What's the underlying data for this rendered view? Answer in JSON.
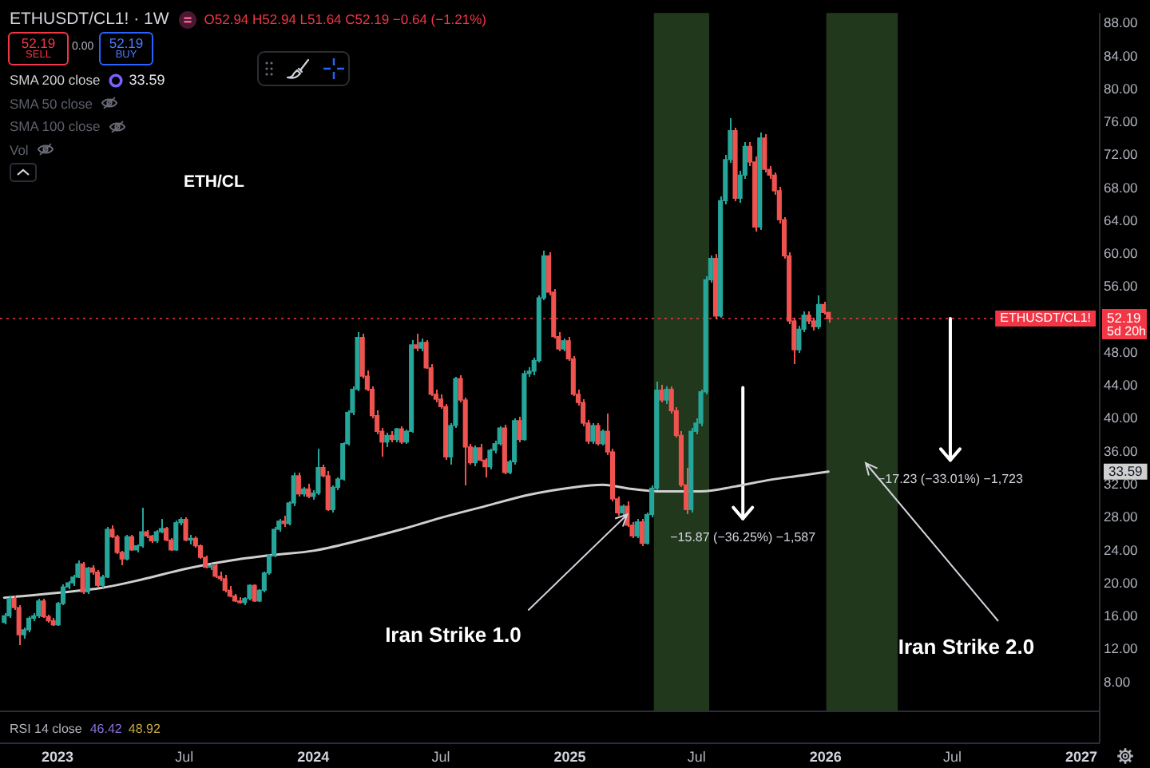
{
  "chart_data": {
    "type": "candlestick",
    "title": "ETHUSDT/CL1! · 1W",
    "subtitle": "O52.94 H52.94 L51.64 C52.19 −0.64 (−1.21%)",
    "x": [
      "2022-10-17",
      "2022-10-24",
      "2022-10-31",
      "2022-11-07",
      "2022-11-14",
      "2022-11-21",
      "2022-11-28",
      "2022-12-05",
      "2022-12-12",
      "2022-12-19",
      "2022-12-26",
      "2023-01-02",
      "2023-01-09",
      "2023-01-16",
      "2023-01-23",
      "2023-01-30",
      "2023-02-06",
      "2023-02-13",
      "2023-02-20",
      "2023-02-27",
      "2023-03-06",
      "2023-03-13",
      "2023-03-20",
      "2023-03-27",
      "2023-04-03",
      "2023-04-10",
      "2023-04-17",
      "2023-04-24",
      "2023-05-01",
      "2023-05-08",
      "2023-05-15",
      "2023-05-22",
      "2023-05-29",
      "2023-06-05",
      "2023-06-12",
      "2023-06-19",
      "2023-06-26",
      "2023-07-03",
      "2023-07-10",
      "2023-07-17",
      "2023-07-24",
      "2023-07-31",
      "2023-08-07",
      "2023-08-14",
      "2023-08-21",
      "2023-08-28",
      "2023-09-04",
      "2023-09-11",
      "2023-09-18",
      "2023-09-25",
      "2023-10-02",
      "2023-10-09",
      "2023-10-16",
      "2023-10-23",
      "2023-10-30",
      "2023-11-06",
      "2023-11-13",
      "2023-11-20",
      "2023-11-27",
      "2023-12-04",
      "2023-12-11",
      "2023-12-18",
      "2023-12-25",
      "2024-01-01",
      "2024-01-08",
      "2024-01-15",
      "2024-01-22",
      "2024-01-29",
      "2024-02-05",
      "2024-02-12",
      "2024-02-19",
      "2024-02-26",
      "2024-03-04",
      "2024-03-11",
      "2024-03-18",
      "2024-03-25",
      "2024-04-01",
      "2024-04-08",
      "2024-04-15",
      "2024-04-22",
      "2024-04-29",
      "2024-05-06",
      "2024-05-13",
      "2024-05-20",
      "2024-05-27",
      "2024-06-03",
      "2024-06-10",
      "2024-06-17",
      "2024-06-24",
      "2024-07-01",
      "2024-07-08",
      "2024-07-15",
      "2024-07-22",
      "2024-07-29",
      "2024-08-05",
      "2024-08-12",
      "2024-08-19",
      "2024-08-26",
      "2024-09-02",
      "2024-09-09",
      "2024-09-16",
      "2024-09-23",
      "2024-09-30",
      "2024-10-07",
      "2024-10-14",
      "2024-10-21",
      "2024-10-28",
      "2024-11-04",
      "2024-11-11",
      "2024-11-18",
      "2024-11-25",
      "2024-12-02",
      "2024-12-09",
      "2024-12-16",
      "2024-12-23",
      "2024-12-30",
      "2025-01-06",
      "2025-01-13",
      "2025-01-20",
      "2025-01-27",
      "2025-02-03",
      "2025-02-10",
      "2025-02-17",
      "2025-02-24",
      "2025-03-03",
      "2025-03-10",
      "2025-03-17",
      "2025-03-24",
      "2025-03-31",
      "2025-04-07",
      "2025-04-14",
      "2025-04-21",
      "2025-04-28",
      "2025-05-05",
      "2025-05-12",
      "2025-05-19",
      "2025-05-26",
      "2025-06-02",
      "2025-06-09",
      "2025-06-16",
      "2025-06-23",
      "2025-06-30",
      "2025-07-07",
      "2025-07-14",
      "2025-07-21",
      "2025-07-28",
      "2025-08-04",
      "2025-08-11",
      "2025-08-18",
      "2025-08-25",
      "2025-09-01",
      "2025-09-08",
      "2025-09-15",
      "2025-09-22",
      "2025-09-29",
      "2025-10-06",
      "2025-10-13",
      "2025-10-20",
      "2025-10-27",
      "2025-11-03",
      "2025-11-10",
      "2025-11-17",
      "2025-11-24",
      "2025-12-01",
      "2025-12-08",
      "2025-12-15",
      "2025-12-22",
      "2025-12-29",
      "2026-01-05"
    ],
    "ohlc": [
      [
        15.3,
        16.4,
        15.0,
        16.1
      ],
      [
        16.1,
        18.5,
        15.9,
        18.2
      ],
      [
        18.2,
        18.6,
        16.9,
        17.1
      ],
      [
        17.1,
        17.4,
        12.6,
        13.8
      ],
      [
        13.8,
        14.7,
        13.3,
        14.4
      ],
      [
        14.4,
        16.0,
        14.1,
        15.8
      ],
      [
        15.8,
        16.4,
        15.4,
        16.1
      ],
      [
        16.1,
        18.2,
        15.9,
        17.9
      ],
      [
        17.9,
        18.1,
        15.8,
        16.0
      ],
      [
        16.0,
        16.3,
        15.3,
        15.5
      ],
      [
        15.5,
        15.8,
        14.8,
        15.0
      ],
      [
        15.0,
        17.8,
        14.9,
        17.6
      ],
      [
        17.6,
        19.9,
        17.4,
        19.6
      ],
      [
        19.6,
        20.4,
        19.3,
        20.1
      ],
      [
        20.1,
        21.0,
        19.8,
        20.8
      ],
      [
        20.8,
        22.8,
        20.6,
        22.4
      ],
      [
        22.4,
        22.6,
        18.8,
        19.0
      ],
      [
        19.0,
        22.1,
        18.8,
        21.9
      ],
      [
        21.9,
        22.2,
        21.1,
        21.4
      ],
      [
        21.4,
        21.7,
        19.6,
        19.8
      ],
      [
        19.8,
        21.1,
        19.5,
        20.8
      ],
      [
        20.8,
        26.9,
        20.6,
        26.6
      ],
      [
        26.6,
        27.0,
        25.5,
        25.7
      ],
      [
        25.7,
        26.0,
        23.6,
        23.8
      ],
      [
        23.8,
        23.9,
        22.2,
        23.0
      ],
      [
        23.0,
        25.9,
        22.8,
        25.7
      ],
      [
        25.7,
        25.9,
        23.9,
        24.1
      ],
      [
        24.1,
        24.8,
        23.8,
        24.6
      ],
      [
        24.6,
        29.3,
        24.4,
        26.3
      ],
      [
        26.3,
        26.6,
        25.6,
        25.8
      ],
      [
        25.8,
        26.0,
        25.0,
        25.2
      ],
      [
        25.2,
        26.5,
        25.0,
        26.3
      ],
      [
        26.3,
        27.9,
        26.1,
        26.7
      ],
      [
        26.7,
        26.9,
        25.1,
        25.3
      ],
      [
        25.3,
        25.5,
        24.0,
        24.1
      ],
      [
        24.1,
        27.6,
        23.9,
        27.4
      ],
      [
        27.4,
        28.0,
        27.1,
        27.8
      ],
      [
        27.8,
        28.0,
        25.1,
        25.3
      ],
      [
        25.3,
        25.9,
        24.8,
        25.5
      ],
      [
        25.5,
        25.7,
        24.4,
        24.6
      ],
      [
        24.6,
        24.8,
        23.0,
        23.2
      ],
      [
        23.2,
        23.4,
        21.8,
        22.0
      ],
      [
        22.0,
        22.5,
        21.7,
        22.2
      ],
      [
        22.2,
        22.4,
        20.7,
        20.9
      ],
      [
        20.9,
        21.5,
        20.4,
        20.6
      ],
      [
        20.6,
        21.0,
        19.0,
        19.2
      ],
      [
        19.2,
        19.7,
        18.3,
        18.5
      ],
      [
        18.5,
        18.8,
        17.7,
        17.9
      ],
      [
        17.9,
        18.4,
        17.5,
        17.7
      ],
      [
        17.7,
        18.4,
        17.4,
        18.2
      ],
      [
        18.2,
        20.0,
        18.0,
        19.8
      ],
      [
        19.8,
        20.0,
        17.7,
        17.9
      ],
      [
        17.9,
        19.4,
        17.7,
        19.2
      ],
      [
        19.2,
        21.5,
        19.0,
        21.3
      ],
      [
        21.3,
        23.6,
        21.1,
        23.4
      ],
      [
        23.4,
        26.8,
        23.2,
        26.6
      ],
      [
        26.6,
        27.9,
        26.3,
        27.6
      ],
      [
        27.6,
        28.2,
        26.9,
        27.3
      ],
      [
        27.3,
        30.0,
        27.0,
        29.8
      ],
      [
        29.8,
        33.4,
        29.5,
        33.1
      ],
      [
        33.1,
        33.5,
        30.6,
        30.9
      ],
      [
        30.9,
        31.8,
        30.6,
        31.5
      ],
      [
        31.5,
        32.2,
        30.4,
        30.6
      ],
      [
        30.6,
        31.3,
        30.2,
        31.0
      ],
      [
        31.0,
        36.3,
        30.8,
        34.1
      ],
      [
        34.1,
        34.4,
        32.9,
        33.1
      ],
      [
        33.1,
        33.6,
        28.8,
        29.0
      ],
      [
        29.0,
        31.9,
        28.6,
        31.7
      ],
      [
        31.7,
        33.0,
        31.4,
        32.7
      ],
      [
        32.7,
        37.2,
        32.5,
        37.0
      ],
      [
        37.0,
        41.1,
        36.8,
        40.8
      ],
      [
        40.8,
        44.0,
        40.5,
        43.6
      ],
      [
        43.6,
        50.5,
        43.3,
        49.9
      ],
      [
        49.9,
        50.3,
        44.9,
        45.2
      ],
      [
        45.2,
        45.8,
        43.3,
        43.6
      ],
      [
        43.6,
        44.0,
        40.1,
        40.4
      ],
      [
        40.4,
        41.0,
        38.2,
        38.5
      ],
      [
        38.5,
        38.9,
        35.4,
        37.2
      ],
      [
        37.2,
        38.4,
        36.5,
        38.0
      ],
      [
        38.0,
        38.6,
        37.2,
        37.5
      ],
      [
        37.5,
        39.0,
        37.2,
        38.8
      ],
      [
        38.8,
        39.2,
        37.0,
        37.2
      ],
      [
        37.2,
        38.8,
        36.9,
        38.5
      ],
      [
        38.5,
        49.6,
        38.3,
        49.0
      ],
      [
        49.0,
        50.4,
        48.3,
        48.6
      ],
      [
        48.6,
        49.8,
        48.2,
        49.3
      ],
      [
        49.3,
        49.6,
        46.0,
        46.2
      ],
      [
        46.2,
        46.6,
        42.8,
        43.0
      ],
      [
        43.0,
        43.6,
        42.1,
        42.4
      ],
      [
        42.4,
        43.0,
        41.2,
        41.5
      ],
      [
        41.5,
        41.8,
        35.0,
        35.4
      ],
      [
        35.4,
        39.5,
        34.4,
        39.2
      ],
      [
        39.2,
        45.2,
        38.9,
        44.9
      ],
      [
        44.9,
        45.4,
        42.0,
        42.3
      ],
      [
        42.3,
        42.6,
        32.0,
        36.6
      ],
      [
        36.6,
        37.0,
        34.4,
        34.7
      ],
      [
        34.7,
        36.8,
        34.3,
        36.5
      ],
      [
        36.5,
        36.9,
        34.8,
        35.0
      ],
      [
        35.0,
        35.3,
        33.0,
        34.2
      ],
      [
        34.2,
        36.4,
        33.9,
        36.2
      ],
      [
        36.2,
        37.3,
        35.9,
        37.0
      ],
      [
        37.0,
        39.2,
        36.7,
        38.9
      ],
      [
        38.9,
        39.3,
        33.2,
        33.5
      ],
      [
        33.5,
        35.1,
        33.2,
        34.8
      ],
      [
        34.8,
        40.1,
        34.5,
        39.8
      ],
      [
        39.8,
        40.2,
        37.2,
        37.5
      ],
      [
        37.5,
        45.8,
        37.3,
        45.5
      ],
      [
        45.5,
        46.3,
        45.1,
        45.8
      ],
      [
        45.8,
        47.4,
        45.4,
        47.1
      ],
      [
        47.1,
        55.0,
        46.8,
        54.7
      ],
      [
        54.7,
        60.5,
        54.4,
        59.8
      ],
      [
        59.8,
        60.2,
        55.0,
        55.4
      ],
      [
        55.4,
        55.8,
        49.7,
        50.0
      ],
      [
        50.0,
        50.6,
        48.2,
        48.5
      ],
      [
        48.5,
        49.8,
        48.2,
        49.5
      ],
      [
        49.5,
        49.9,
        47.0,
        47.3
      ],
      [
        47.3,
        47.7,
        42.7,
        43.0
      ],
      [
        43.0,
        43.6,
        41.7,
        42.0
      ],
      [
        42.0,
        42.4,
        39.2,
        39.5
      ],
      [
        39.5,
        39.8,
        36.9,
        37.3
      ],
      [
        37.3,
        39.5,
        37.0,
        39.2
      ],
      [
        39.2,
        39.5,
        36.7,
        37.0
      ],
      [
        37.0,
        38.8,
        36.7,
        38.5
      ],
      [
        38.5,
        40.7,
        35.7,
        36.0
      ],
      [
        36.0,
        36.3,
        30.0,
        30.3
      ],
      [
        30.3,
        30.6,
        28.3,
        28.6
      ],
      [
        28.6,
        29.7,
        28.3,
        29.4
      ],
      [
        29.4,
        29.9,
        26.8,
        27.1
      ],
      [
        27.1,
        27.4,
        25.5,
        25.8
      ],
      [
        25.8,
        27.9,
        25.5,
        27.5
      ],
      [
        27.5,
        27.8,
        24.5,
        24.9
      ],
      [
        24.9,
        28.7,
        24.7,
        28.4
      ],
      [
        28.4,
        31.9,
        28.0,
        31.6
      ],
      [
        31.6,
        44.5,
        31.3,
        43.5
      ],
      [
        43.5,
        44.2,
        42.0,
        42.3
      ],
      [
        42.3,
        44.0,
        41.8,
        43.6
      ],
      [
        43.6,
        44.0,
        40.7,
        41.0
      ],
      [
        41.0,
        41.4,
        37.7,
        38.0
      ],
      [
        38.0,
        38.5,
        31.7,
        32.0
      ],
      [
        32.0,
        34.0,
        28.5,
        29.0
      ],
      [
        29.0,
        38.9,
        28.7,
        38.5
      ],
      [
        38.5,
        40.0,
        38.1,
        39.5
      ],
      [
        39.5,
        43.6,
        39.2,
        43.3
      ],
      [
        43.3,
        57.3,
        43.0,
        56.9
      ],
      [
        56.9,
        59.9,
        56.5,
        59.5
      ],
      [
        59.5,
        60.1,
        52.1,
        52.5
      ],
      [
        52.5,
        67.0,
        52.2,
        66.5
      ],
      [
        66.5,
        72.0,
        66.1,
        71.5
      ],
      [
        71.5,
        76.5,
        71.0,
        75.0
      ],
      [
        75.0,
        75.4,
        66.4,
        66.8
      ],
      [
        66.8,
        70.2,
        66.3,
        69.6
      ],
      [
        69.6,
        73.6,
        69.2,
        73.1
      ],
      [
        73.1,
        73.6,
        70.8,
        71.2
      ],
      [
        71.2,
        71.8,
        62.8,
        63.3
      ],
      [
        63.3,
        74.8,
        63.0,
        74.1
      ],
      [
        74.1,
        74.6,
        69.9,
        70.3
      ],
      [
        70.3,
        70.8,
        69.1,
        69.6
      ],
      [
        69.6,
        70.0,
        67.3,
        67.7
      ],
      [
        67.7,
        68.1,
        63.8,
        64.2
      ],
      [
        64.2,
        64.6,
        59.4,
        59.8
      ],
      [
        59.8,
        60.2,
        51.5,
        51.9
      ],
      [
        51.9,
        52.3,
        46.7,
        48.4
      ],
      [
        48.4,
        51.3,
        48.0,
        50.9
      ],
      [
        50.9,
        53.0,
        50.5,
        52.6
      ],
      [
        52.6,
        53.0,
        51.5,
        51.9
      ],
      [
        51.9,
        52.3,
        50.8,
        51.2
      ],
      [
        51.2,
        55.1,
        50.9,
        53.9
      ],
      [
        53.9,
        54.3,
        52.6,
        52.94
      ],
      [
        52.94,
        52.94,
        51.64,
        52.19
      ]
    ],
    "colors": [
      "#26a69a",
      "#26a69a",
      "#ef5350",
      "#ef5350",
      "#26a69a",
      "#26a69a",
      "#26a69a",
      "#26a69a",
      "#ef5350",
      "#ef5350",
      "#ef5350",
      "#26a69a",
      "#26a69a",
      "#26a69a",
      "#26a69a",
      "#26a69a",
      "#ef5350",
      "#26a69a",
      "#ef5350",
      "#ef5350",
      "#26a69a",
      "#26a69a",
      "#ef5350",
      "#ef5350",
      "#ef5350",
      "#26a69a",
      "#ef5350",
      "#26a69a",
      "#26a69a",
      "#ef5350",
      "#ef5350",
      "#26a69a",
      "#26a69a",
      "#ef5350",
      "#ef5350",
      "#26a69a",
      "#26a69a",
      "#ef5350",
      "#26a69a",
      "#ef5350",
      "#ef5350",
      "#ef5350",
      "#26a69a",
      "#ef5350",
      "#ef5350",
      "#ef5350",
      "#ef5350",
      "#ef5350",
      "#ef5350",
      "#26a69a",
      "#26a69a",
      "#ef5350",
      "#26a69a",
      "#26a69a",
      "#26a69a",
      "#26a69a",
      "#26a69a",
      "#ef5350",
      "#26a69a",
      "#26a69a",
      "#ef5350",
      "#26a69a",
      "#ef5350",
      "#26a69a",
      "#26a69a",
      "#ef5350",
      "#ef5350",
      "#26a69a",
      "#26a69a",
      "#26a69a",
      "#26a69a",
      "#26a69a",
      "#26a69a",
      "#ef5350",
      "#ef5350",
      "#ef5350",
      "#ef5350",
      "#ef5350",
      "#26a69a",
      "#ef5350",
      "#26a69a",
      "#ef5350",
      "#26a69a",
      "#26a69a",
      "#ef5350",
      "#26a69a",
      "#ef5350",
      "#ef5350",
      "#ef5350",
      "#ef5350",
      "#ef5350",
      "#26a69a",
      "#26a69a",
      "#ef5350",
      "#ef5350",
      "#ef5350",
      "#26a69a",
      "#ef5350",
      "#ef5350",
      "#26a69a",
      "#26a69a",
      "#26a69a",
      "#ef5350",
      "#26a69a",
      "#26a69a",
      "#ef5350",
      "#26a69a",
      "#26a69a",
      "#26a69a",
      "#26a69a",
      "#26a69a",
      "#ef5350",
      "#ef5350",
      "#ef5350",
      "#26a69a",
      "#ef5350",
      "#ef5350",
      "#ef5350",
      "#ef5350",
      "#ef5350",
      "#26a69a",
      "#ef5350",
      "#26a69a",
      "#ef5350",
      "#ef5350",
      "#ef5350",
      "#26a69a",
      "#ef5350",
      "#ef5350",
      "#26a69a",
      "#ef5350",
      "#26a69a",
      "#26a69a",
      "#26a69a",
      "#ef5350",
      "#26a69a",
      "#ef5350",
      "#ef5350",
      "#ef5350",
      "#ef5350",
      "#26a69a",
      "#26a69a",
      "#26a69a",
      "#26a69a",
      "#26a69a",
      "#ef5350",
      "#26a69a",
      "#26a69a",
      "#26a69a",
      "#ef5350",
      "#26a69a",
      "#26a69a",
      "#ef5350",
      "#ef5350",
      "#26a69a",
      "#ef5350",
      "#ef5350",
      "#ef5350",
      "#ef5350",
      "#ef5350",
      "#ef5350",
      "#ef5350",
      "#26a69a",
      "#26a69a",
      "#ef5350",
      "#ef5350",
      "#26a69a",
      "#ef5350",
      "#ef5350"
    ],
    "series": [
      {
        "name": "SMA 200 close",
        "type": "line",
        "color": "#cfcfcf",
        "x": [
          "2022-10-17",
          "2023-01-02",
          "2023-03-06",
          "2023-05-01",
          "2023-07-03",
          "2023-09-04",
          "2023-11-06",
          "2024-01-01",
          "2024-03-04",
          "2024-05-06",
          "2024-07-01",
          "2024-09-02",
          "2024-11-04",
          "2025-01-06",
          "2025-02-17",
          "2025-03-31",
          "2025-05-12",
          "2025-07-07",
          "2025-08-25",
          "2025-10-13",
          "2025-11-24",
          "2026-01-05"
        ],
        "values": [
          18.3,
          18.9,
          19.5,
          20.5,
          21.8,
          22.8,
          23.5,
          24.0,
          25.2,
          26.6,
          28.0,
          29.4,
          30.8,
          31.7,
          32.0,
          31.5,
          31.2,
          31.2,
          31.8,
          32.6,
          33.1,
          33.6
        ]
      },
      {
        "type": "line",
        "color": "#ffffff",
        "x": [
          "2025-09-05",
          "2025-09-05"
        ],
        "values": [
          43.8,
          27.9
        ]
      },
      {
        "type": "line",
        "color": "#ffffff",
        "x": [
          "2026-06-28",
          "2026-06-28"
        ],
        "values": [
          52.2,
          35.0
        ]
      }
    ],
    "xlim": [
      "2022-10-11",
      "2027-01-26"
    ],
    "xticks": [
      {
        "value": "2023-01-01",
        "label": "2023"
      },
      {
        "value": "2023-07-01",
        "label": "Jul"
      },
      {
        "value": "2024-01-01",
        "label": "2024"
      },
      {
        "value": "2024-07-01",
        "label": "Jul"
      },
      {
        "value": "2025-01-01",
        "label": "2025"
      },
      {
        "value": "2025-07-01",
        "label": "Jul"
      },
      {
        "value": "2026-01-01",
        "label": "2026"
      },
      {
        "value": "2026-07-01",
        "label": "Jul"
      },
      {
        "value": "2027-01-01",
        "label": "2027"
      }
    ],
    "ylim": [
      4.6,
      89.3
    ],
    "yticks": [
      {
        "value": 88,
        "label": "88.00"
      },
      {
        "value": 84,
        "label": "84.00"
      },
      {
        "value": 80,
        "label": "80.00"
      },
      {
        "value": 76,
        "label": "76.00"
      },
      {
        "value": 72,
        "label": "72.00"
      },
      {
        "value": 68,
        "label": "68.00"
      },
      {
        "value": 64,
        "label": "64.00"
      },
      {
        "value": 60,
        "label": "60.00"
      },
      {
        "value": 56,
        "label": "56.00"
      },
      {
        "value": 48,
        "label": "48.00"
      },
      {
        "value": 44,
        "label": "44.00"
      },
      {
        "value": 40,
        "label": "40.00"
      },
      {
        "value": 36,
        "label": "36.00"
      },
      {
        "value": 32,
        "label": "32.00"
      },
      {
        "value": 28,
        "label": "28.00"
      },
      {
        "value": 24,
        "label": "24.00"
      },
      {
        "value": 20,
        "label": "20.00"
      },
      {
        "value": 16,
        "label": "16.00"
      },
      {
        "value": 12,
        "label": "12.00"
      },
      {
        "value": 8,
        "label": "8.00"
      }
    ],
    "ref_lines": [
      {
        "axis": "y",
        "value": 52.19,
        "label": "52.19",
        "color": "#f23645",
        "line_style": "dotted"
      }
    ],
    "bands": [
      {
        "axis": "x",
        "from": "2025-05-01",
        "to": "2025-07-19",
        "color": "#22381c"
      },
      {
        "axis": "x",
        "from": "2026-01-02",
        "to": "2026-04-14",
        "color": "#22381c"
      }
    ],
    "legend": "top left",
    "annotations": [
      "ETH/CL",
      {
        "text": "Iran Strike 1.0",
        "x": "2025-03-24",
        "y": 28.4
      },
      "Iran Strike 2.0",
      {
        "text": "−15.87 (−36.25%) −1,587",
        "x": "2025-09-05",
        "y": 27.9
      },
      {
        "text": "−17.23 (−33.01%) −1,723",
        "x": "2026-06-28",
        "y": 35.0
      },
      "52.19",
      "SELL",
      "0.00",
      "52.19",
      "BUY",
      "SMA 50 close",
      "SMA 100 close",
      "Vol",
      "RSI 14 close",
      "46.42",
      "48.92",
      "ETHUSDT/CL1!",
      "5d 20h",
      "33.59",
      "33.59"
    ]
  }
}
